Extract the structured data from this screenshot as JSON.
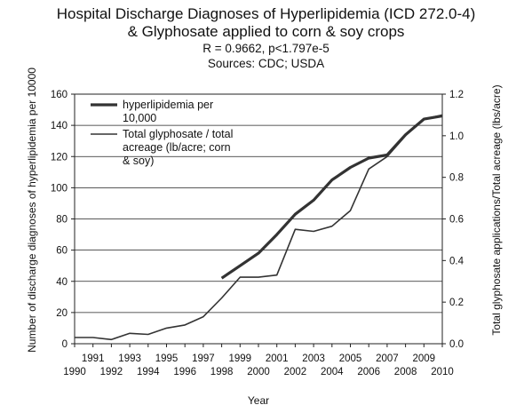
{
  "chart_data": {
    "type": "line",
    "title_lines": [
      "Hospital Discharge Diagnoses of Hyperlipidemia (ICD 272.0-4)",
      "& Glyphosate applied to corn & soy crops"
    ],
    "subtitle_lines": [
      "R = 0.9662, p<1.797e-5",
      "Sources: CDC; USDA"
    ],
    "xlabel": "Year",
    "ylabel_left": "Number of discharge diagnoses of  hyperlipidemia per 10000",
    "ylabel_right": "Total glyphosate applications/Total acreage (lbs/acre)",
    "x_ticks_top": [
      "1991",
      "1993",
      "1995",
      "1997",
      "1999",
      "2001",
      "2003",
      "2005",
      "2007",
      "2009"
    ],
    "x_ticks_bottom": [
      "1990",
      "1992",
      "1994",
      "1996",
      "1998",
      "2000",
      "2002",
      "2004",
      "2006",
      "2008",
      "2010"
    ],
    "y_left": {
      "min": 0,
      "max": 160,
      "step": 20,
      "tick_labels": [
        "0",
        "20",
        "40",
        "60",
        "80",
        "100",
        "120",
        "140",
        "160"
      ]
    },
    "y_right": {
      "min": 0,
      "max": 1.2,
      "step": 0.2,
      "tick_labels": [
        "0.0",
        "0.2",
        "0.4",
        "0.6",
        "0.8",
        "1.0",
        "1.2"
      ]
    },
    "xlim": [
      1990,
      2010
    ],
    "grid": "horizontal",
    "legend_position": "top-left",
    "series": [
      {
        "name": "hyperlipidemia per 10,000",
        "axis": "left",
        "color": "#333333",
        "x": [
          1998,
          1999,
          2000,
          2001,
          2002,
          2003,
          2004,
          2005,
          2006,
          2007,
          2008,
          2009,
          2010
        ],
        "values": [
          42,
          50,
          58,
          70,
          83,
          92,
          105,
          113,
          119,
          121,
          134,
          144,
          146
        ]
      },
      {
        "name": "Total glyphosate / total acreage (lb/acre; corn & soy)",
        "axis": "right",
        "color": "#333333",
        "x": [
          1990,
          1991,
          1992,
          1993,
          1994,
          1995,
          1996,
          1997,
          1998,
          1999,
          2000,
          2001,
          2002,
          2003,
          2004,
          2005,
          2006,
          2007,
          2008,
          2009,
          2010
        ],
        "values": [
          0.03,
          0.03,
          0.02,
          0.05,
          0.045,
          0.075,
          0.09,
          0.13,
          0.22,
          0.32,
          0.32,
          0.33,
          0.55,
          0.54,
          0.565,
          0.64,
          0.84,
          0.9,
          1.0,
          1.08,
          1.1
        ]
      }
    ],
    "legend_lines": [
      [
        "hyperlipidemia per",
        "10,000"
      ],
      [
        "Total glyphosate / total",
        "acreage (lb/acre; corn",
        "& soy)"
      ]
    ]
  }
}
